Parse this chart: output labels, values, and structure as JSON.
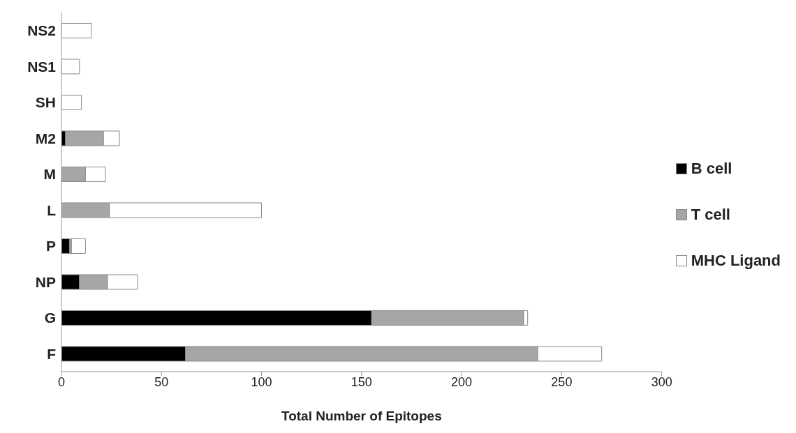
{
  "chart_data": {
    "type": "bar",
    "orientation": "horizontal",
    "stacked": true,
    "xlabel": "Total Number of Epitopes",
    "categories": [
      "NS2",
      "NS1",
      "SH",
      "M2",
      "M",
      "L",
      "P",
      "NP",
      "G",
      "F"
    ],
    "series": [
      {
        "name": "B cell",
        "color": "#000000",
        "values": [
          0,
          0,
          0,
          2,
          0,
          0,
          4,
          9,
          155,
          62
        ]
      },
      {
        "name": "T cell",
        "color": "#a6a6a6",
        "values": [
          0,
          0,
          0,
          19,
          12,
          24,
          1,
          14,
          76,
          176
        ]
      },
      {
        "name": "MHC Ligand",
        "color": "#ffffff",
        "values": [
          15,
          9,
          10,
          8,
          10,
          76,
          7,
          15,
          2,
          32
        ]
      }
    ],
    "xlim": [
      0,
      300
    ],
    "xticks": [
      0,
      50,
      100,
      150,
      200,
      250,
      300
    ],
    "legend": "right"
  }
}
